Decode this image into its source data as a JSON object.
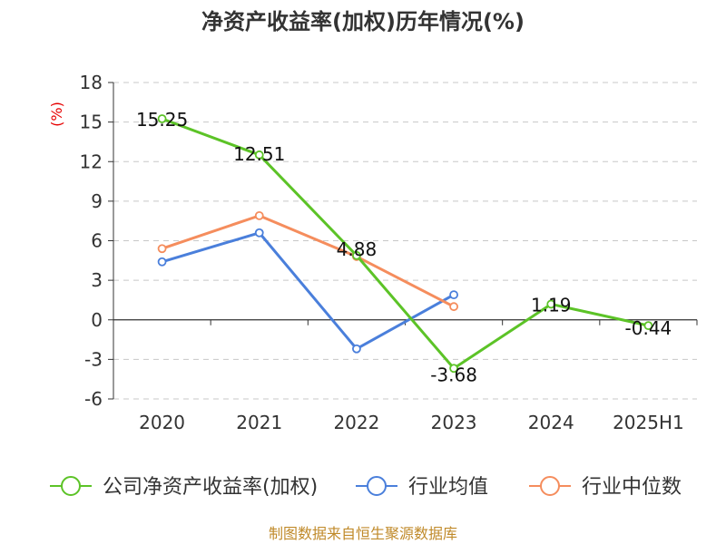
{
  "chart_data": {
    "type": "line",
    "title": "净资产收益率(加权)历年情况(%)",
    "ylabel": "(%)",
    "categories": [
      "2020",
      "2021",
      "2022",
      "2023",
      "2024",
      "2025H1"
    ],
    "ylim": [
      -6,
      18
    ],
    "yticks": [
      -6,
      -3,
      0,
      3,
      6,
      9,
      12,
      15,
      18
    ],
    "grid": true,
    "legend_position": "bottom",
    "series": [
      {
        "name": "公司净资产收益率(加权)",
        "color": "#5cc327",
        "values": [
          15.25,
          12.51,
          4.88,
          -3.68,
          1.19,
          -0.44
        ],
        "labels": [
          "15.25",
          "12.51",
          "4.88",
          "-3.68",
          "1.19",
          "-0.44"
        ]
      },
      {
        "name": "行业均值",
        "color": "#4a7fdb",
        "values": [
          4.4,
          6.6,
          -2.2,
          1.9,
          null,
          null
        ]
      },
      {
        "name": "行业中位数",
        "color": "#f58d5d",
        "values": [
          5.4,
          7.9,
          4.8,
          1.0,
          null,
          null
        ]
      }
    ],
    "source": "制图数据来自恒生聚源数据库"
  }
}
